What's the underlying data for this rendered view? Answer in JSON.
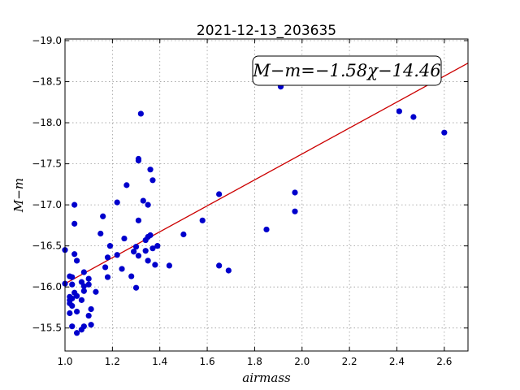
{
  "chart_data": {
    "type": "scatter",
    "title": "2021-12-13_203635",
    "xlabel": "airmass",
    "ylabel": "M−m",
    "xlim": [
      1.0,
      2.7
    ],
    "ylim": [
      -19.02,
      -15.22
    ],
    "y_inverted": true,
    "grid": true,
    "xticks": [
      1.0,
      1.2,
      1.4,
      1.6,
      1.8,
      2.0,
      2.2,
      2.4,
      2.6
    ],
    "xtick_labels": [
      "1.0",
      "1.2",
      "1.4",
      "1.6",
      "1.8",
      "2.0",
      "2.2",
      "2.4",
      "2.6"
    ],
    "yticks": [
      -15.5,
      -16.0,
      -16.5,
      -17.0,
      -17.5,
      -18.0,
      -18.5,
      -19.0
    ],
    "ytick_labels": [
      "−15.5",
      "−16.0",
      "−16.5",
      "−17.0",
      "−17.5",
      "−18.0",
      "−18.5",
      "−19.0"
    ],
    "annotation": "M−m=−1.58χ−14.46",
    "annotation_position": "top-right",
    "fit": {
      "slope": -1.58,
      "intercept": -14.46,
      "color": "#cc0000"
    },
    "point_color": "#0000cc",
    "points": [
      {
        "x": 1.0,
        "y": -16.04
      },
      {
        "x": 1.0,
        "y": -16.45
      },
      {
        "x": 1.02,
        "y": -15.68
      },
      {
        "x": 1.02,
        "y": -15.8
      },
      {
        "x": 1.02,
        "y": -15.84
      },
      {
        "x": 1.02,
        "y": -15.88
      },
      {
        "x": 1.02,
        "y": -16.13
      },
      {
        "x": 1.03,
        "y": -15.52
      },
      {
        "x": 1.03,
        "y": -15.77
      },
      {
        "x": 1.03,
        "y": -15.86
      },
      {
        "x": 1.03,
        "y": -16.03
      },
      {
        "x": 1.03,
        "y": -16.12
      },
      {
        "x": 1.04,
        "y": -15.93
      },
      {
        "x": 1.04,
        "y": -16.4
      },
      {
        "x": 1.04,
        "y": -16.77
      },
      {
        "x": 1.04,
        "y": -17.0
      },
      {
        "x": 1.05,
        "y": -15.44
      },
      {
        "x": 1.05,
        "y": -15.7
      },
      {
        "x": 1.05,
        "y": -15.89
      },
      {
        "x": 1.05,
        "y": -16.32
      },
      {
        "x": 1.07,
        "y": -15.48
      },
      {
        "x": 1.07,
        "y": -15.84
      },
      {
        "x": 1.07,
        "y": -16.06
      },
      {
        "x": 1.08,
        "y": -15.52
      },
      {
        "x": 1.08,
        "y": -15.95
      },
      {
        "x": 1.08,
        "y": -16.01
      },
      {
        "x": 1.08,
        "y": -16.18
      },
      {
        "x": 1.1,
        "y": -16.03
      },
      {
        "x": 1.1,
        "y": -16.1
      },
      {
        "x": 1.1,
        "y": -15.65
      },
      {
        "x": 1.11,
        "y": -15.54
      },
      {
        "x": 1.11,
        "y": -15.73
      },
      {
        "x": 1.13,
        "y": -15.94
      },
      {
        "x": 1.15,
        "y": -16.65
      },
      {
        "x": 1.16,
        "y": -16.86
      },
      {
        "x": 1.17,
        "y": -16.24
      },
      {
        "x": 1.18,
        "y": -16.12
      },
      {
        "x": 1.18,
        "y": -16.36
      },
      {
        "x": 1.19,
        "y": -16.5
      },
      {
        "x": 1.22,
        "y": -16.39
      },
      {
        "x": 1.22,
        "y": -17.03
      },
      {
        "x": 1.24,
        "y": -16.22
      },
      {
        "x": 1.25,
        "y": -16.59
      },
      {
        "x": 1.26,
        "y": -17.24
      },
      {
        "x": 1.28,
        "y": -16.13
      },
      {
        "x": 1.29,
        "y": -16.43
      },
      {
        "x": 1.3,
        "y": -16.49
      },
      {
        "x": 1.3,
        "y": -15.99
      },
      {
        "x": 1.31,
        "y": -16.38
      },
      {
        "x": 1.31,
        "y": -16.81
      },
      {
        "x": 1.31,
        "y": -17.54
      },
      {
        "x": 1.31,
        "y": -17.56
      },
      {
        "x": 1.32,
        "y": -18.11
      },
      {
        "x": 1.33,
        "y": -17.05
      },
      {
        "x": 1.34,
        "y": -16.44
      },
      {
        "x": 1.34,
        "y": -16.57
      },
      {
        "x": 1.35,
        "y": -16.32
      },
      {
        "x": 1.35,
        "y": -16.61
      },
      {
        "x": 1.35,
        "y": -17.0
      },
      {
        "x": 1.36,
        "y": -16.63
      },
      {
        "x": 1.36,
        "y": -17.43
      },
      {
        "x": 1.37,
        "y": -17.3
      },
      {
        "x": 1.37,
        "y": -16.47
      },
      {
        "x": 1.38,
        "y": -16.27
      },
      {
        "x": 1.39,
        "y": -16.5
      },
      {
        "x": 1.44,
        "y": -16.26
      },
      {
        "x": 1.5,
        "y": -16.64
      },
      {
        "x": 1.58,
        "y": -16.81
      },
      {
        "x": 1.65,
        "y": -16.26
      },
      {
        "x": 1.65,
        "y": -17.13
      },
      {
        "x": 1.69,
        "y": -16.2
      },
      {
        "x": 1.85,
        "y": -16.7
      },
      {
        "x": 1.91,
        "y": -18.44
      },
      {
        "x": 1.97,
        "y": -17.15
      },
      {
        "x": 1.97,
        "y": -16.92
      },
      {
        "x": 2.41,
        "y": -18.14
      },
      {
        "x": 2.47,
        "y": -18.07
      },
      {
        "x": 2.6,
        "y": -17.88
      }
    ]
  }
}
